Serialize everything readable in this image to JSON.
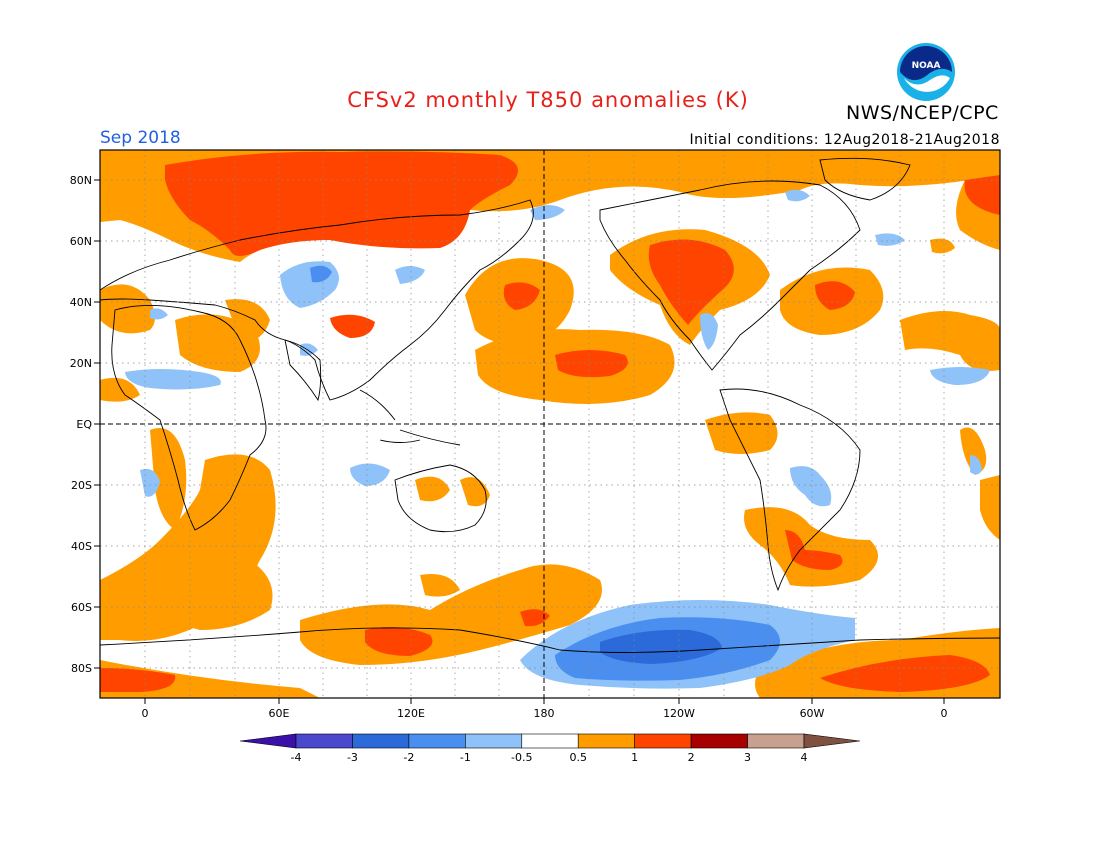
{
  "title": "CFSv2 monthly T850 anomalies (K)",
  "source": "NWS/NCEP/CPC",
  "logo_text": "NOAA",
  "period": "Sep 2018",
  "initial_conditions": "Initial conditions: 12Aug2018-21Aug2018",
  "lat_labels": [
    "80N",
    "60N",
    "40N",
    "20N",
    "EQ",
    "20S",
    "40S",
    "60S",
    "80S"
  ],
  "lon_labels": [
    "0",
    "60E",
    "120E",
    "180",
    "120W",
    "60W",
    "0"
  ],
  "colorbar": {
    "colors": [
      "#3a10a8",
      "#4a48cc",
      "#2b6ad8",
      "#4a8ef0",
      "#8ec2f8",
      "#ffffff",
      "#ff9d00",
      "#ff4400",
      "#a80000",
      "#c8a090",
      "#805040"
    ],
    "labels": [
      "-4",
      "-3",
      "-2",
      "-1",
      "-0.5",
      "0.5",
      "1",
      "2",
      "3",
      "4"
    ]
  },
  "colors": {
    "warm_1": "#ff9d00",
    "warm_2": "#ff4400",
    "cool_1": "#8ec2f8",
    "cool_2": "#4a8ef0",
    "cool_3": "#2b6ad8"
  }
}
